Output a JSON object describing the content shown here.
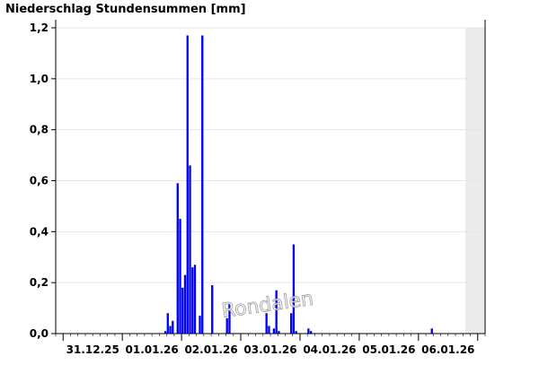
{
  "chart_data": {
    "type": "bar",
    "title": "Niederschlag Stundensummen [mm]",
    "xlabel": "",
    "ylabel": "",
    "ylim": [
      0,
      1.2
    ],
    "yticks": [
      0,
      0.2,
      0.4,
      0.6,
      0.8,
      1.0,
      1.2
    ],
    "ytick_labels": [
      "0,0",
      "0,2",
      "0,4",
      "0,6",
      "0,8",
      "1,0",
      "1,2"
    ],
    "x_axis": {
      "unit": "hour",
      "range_start": "2025-12-30T21:00",
      "range_end": "2026-01-07T03:00",
      "day_ticks": [
        "2025-12-31",
        "2026-01-01",
        "2026-01-02",
        "2026-01-03",
        "2026-01-04",
        "2026-01-05",
        "2026-01-06",
        "2026-01-07"
      ],
      "day_labels": [
        "31.12.25",
        "01.01.26",
        "02.01.26",
        "03.01.26",
        "04.01.26",
        "05.01.26",
        "06.01.26"
      ]
    },
    "grid": true,
    "grey_region_start": "2026-01-06T19:00",
    "watermark": "Rondalen",
    "series": [
      {
        "color": "#0000ff",
        "points": [
          {
            "x": "2026-01-01T17:00",
            "y": 0.01
          },
          {
            "x": "2026-01-01T18:00",
            "y": 0.08
          },
          {
            "x": "2026-01-01T19:00",
            "y": 0.03
          },
          {
            "x": "2026-01-01T20:00",
            "y": 0.05
          },
          {
            "x": "2026-01-01T22:00",
            "y": 0.59
          },
          {
            "x": "2026-01-01T23:00",
            "y": 0.45
          },
          {
            "x": "2026-01-02T00:00",
            "y": 0.18
          },
          {
            "x": "2026-01-02T01:00",
            "y": 0.23
          },
          {
            "x": "2026-01-02T02:00",
            "y": 1.17
          },
          {
            "x": "2026-01-02T03:00",
            "y": 0.66
          },
          {
            "x": "2026-01-02T04:00",
            "y": 0.26
          },
          {
            "x": "2026-01-02T05:00",
            "y": 0.27
          },
          {
            "x": "2026-01-02T07:00",
            "y": 0.07
          },
          {
            "x": "2026-01-02T08:00",
            "y": 1.17
          },
          {
            "x": "2026-01-02T12:00",
            "y": 0.19
          },
          {
            "x": "2026-01-02T18:00",
            "y": 0.06
          },
          {
            "x": "2026-01-02T19:00",
            "y": 0.12
          },
          {
            "x": "2026-01-03T10:00",
            "y": 0.08
          },
          {
            "x": "2026-01-03T11:00",
            "y": 0.03
          },
          {
            "x": "2026-01-03T13:00",
            "y": 0.02
          },
          {
            "x": "2026-01-03T14:00",
            "y": 0.17
          },
          {
            "x": "2026-01-03T15:00",
            "y": 0.01
          },
          {
            "x": "2026-01-03T20:00",
            "y": 0.08
          },
          {
            "x": "2026-01-03T21:00",
            "y": 0.35
          },
          {
            "x": "2026-01-03T22:00",
            "y": 0.01
          },
          {
            "x": "2026-01-04T03:00",
            "y": 0.02
          },
          {
            "x": "2026-01-04T04:00",
            "y": 0.01
          },
          {
            "x": "2026-01-06T05:00",
            "y": 0.02
          }
        ]
      }
    ]
  }
}
